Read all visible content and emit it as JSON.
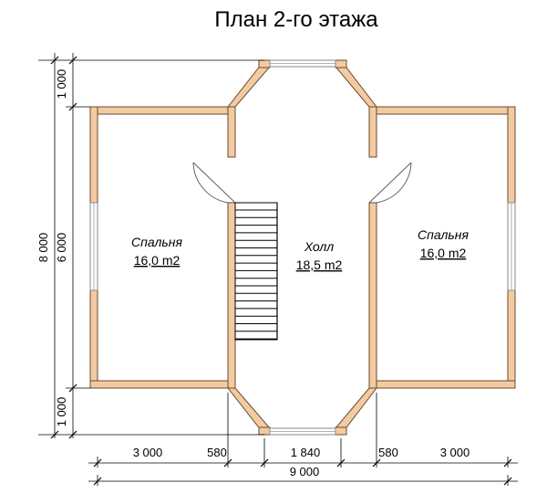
{
  "title": "План 2-го этажа",
  "rooms": {
    "bedroom_left": {
      "name": "Спальня",
      "area": "16,0 m2"
    },
    "hall": {
      "name": "Холл",
      "area": "18,5 m2"
    },
    "bedroom_right": {
      "name": "Спальня",
      "area": "16,0 m2"
    }
  },
  "dimensions": {
    "bottom": [
      "3 000",
      "580",
      "1 840",
      "580",
      "3 000"
    ],
    "total_width": "9 000",
    "left_outer": "8 000",
    "left_inner": [
      "1 000",
      "6 000",
      "1 000"
    ]
  },
  "colors": {
    "wall_fill": "#f3cba3",
    "wall_stroke": "#6b4a2e"
  }
}
